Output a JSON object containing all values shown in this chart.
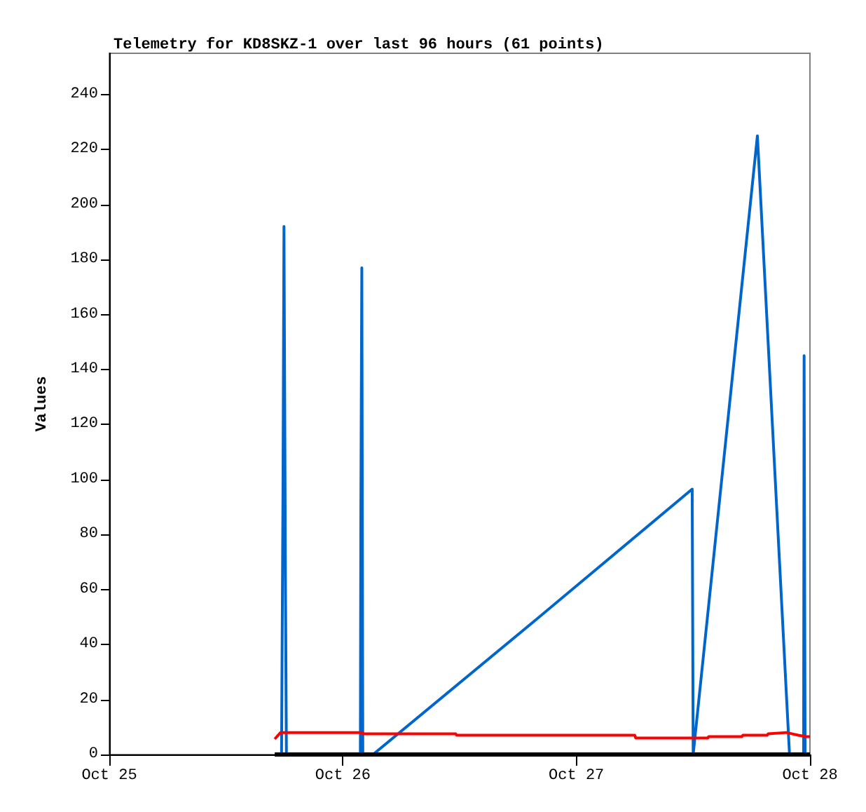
{
  "chart_data": {
    "type": "line",
    "title": "Telemetry for KD8SKZ-1 over last 96 hours (61 points)",
    "ylabel": "Values",
    "xlim": [
      "--10-25",
      "--10-28"
    ],
    "xticks": [
      {
        "value": "--10-25",
        "label": "Oct 25"
      },
      {
        "value": "--10-26",
        "label": "Oct 26"
      },
      {
        "value": "--10-27",
        "label": "Oct 27"
      },
      {
        "value": "--10-28",
        "label": "Oct 28"
      }
    ],
    "ylim": [
      0,
      255
    ],
    "yticks": [
      0,
      20,
      40,
      60,
      80,
      100,
      120,
      140,
      160,
      180,
      200,
      220,
      240
    ],
    "grid": false,
    "marker": "none",
    "line_style": "solid",
    "series": [
      {
        "color": "#000000",
        "x": [
          "--10-25T17:00",
          "--10-28T00:00"
        ],
        "values": [
          0,
          0
        ]
      },
      {
        "color": "#ff0000",
        "x": [
          "--10-25T17:00",
          "--10-25T17:36",
          "--10-26T02:00",
          "--10-26T02:06",
          "--10-26T11:36",
          "--10-26T11:42",
          "--10-27T06:00",
          "--10-27T06:06",
          "--10-27T13:30",
          "--10-27T13:36",
          "--10-27T17:00",
          "--10-27T17:06",
          "--10-27T19:36",
          "--10-27T19:42",
          "--10-27T21:36",
          "--10-27T22:12",
          "--10-27T22:48",
          "--10-27T23:36",
          "--10-28T00:00"
        ],
        "values": [
          5.6,
          8,
          8,
          7.5,
          7.5,
          7,
          7,
          6,
          6,
          6.5,
          6.5,
          7,
          7,
          7.5,
          8,
          7.5,
          7,
          6.5,
          6.5
        ]
      },
      {
        "color": "#0066cc",
        "x": [
          "--10-25T17:42",
          "--10-25T17:51",
          "--10-25T17:57",
          "--10-25T18:06",
          "--10-25T18:12",
          "--10-26T01:48",
          "--10-26T01:51",
          "--10-26T01:57",
          "--10-26T02:03",
          "--10-26T03:06",
          "--10-26T19:30",
          "--10-27T11:54",
          "--10-27T12:00",
          "--10-27T18:36",
          "--10-27T21:54",
          "--10-27T23:21",
          "--10-27T23:24",
          "--10-27T23:30",
          "--10-28T00:00"
        ],
        "values": [
          0,
          97,
          192,
          64,
          0,
          0,
          88,
          177,
          0,
          0,
          48,
          96.5,
          0,
          225,
          0,
          0,
          145,
          0,
          0
        ]
      }
    ]
  }
}
